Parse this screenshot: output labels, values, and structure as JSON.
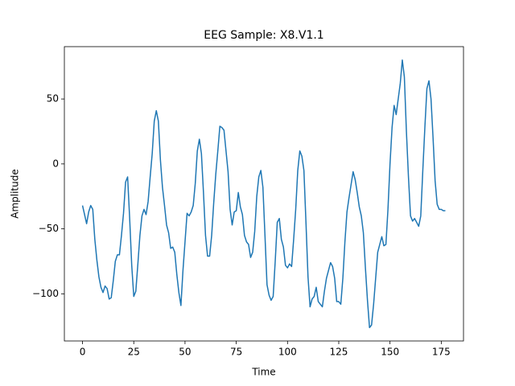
{
  "chart_data": {
    "type": "line",
    "title": "EEG Sample: X8.V1.1",
    "x_label": "Time",
    "y_label": "Amplitude",
    "x": [
      0,
      1,
      2,
      3,
      4,
      5,
      6,
      7,
      8,
      9,
      10,
      11,
      12,
      13,
      14,
      15,
      16,
      17,
      18,
      19,
      20,
      21,
      22,
      23,
      24,
      25,
      26,
      27,
      28,
      29,
      30,
      31,
      32,
      33,
      34,
      35,
      36,
      37,
      38,
      39,
      40,
      41,
      42,
      43,
      44,
      45,
      46,
      47,
      48,
      49,
      50,
      51,
      52,
      53,
      54,
      55,
      56,
      57,
      58,
      59,
      60,
      61,
      62,
      63,
      64,
      65,
      66,
      67,
      68,
      69,
      70,
      71,
      72,
      73,
      74,
      75,
      76,
      77,
      78,
      79,
      80,
      81,
      82,
      83,
      84,
      85,
      86,
      87,
      88,
      89,
      90,
      91,
      92,
      93,
      94,
      95,
      96,
      97,
      98,
      99,
      100,
      101,
      102,
      103,
      104,
      105,
      106,
      107,
      108,
      109,
      110,
      111,
      112,
      113,
      114,
      115,
      116,
      117,
      118,
      119,
      120,
      121,
      122,
      123,
      124,
      125,
      126,
      127,
      128,
      129,
      130,
      131,
      132,
      133,
      134,
      135,
      136,
      137,
      138,
      139,
      140,
      141,
      142,
      143,
      144,
      145,
      146,
      147,
      148,
      149,
      150,
      151,
      152,
      153,
      154,
      155,
      156,
      157,
      158,
      159,
      160,
      161,
      162,
      163,
      164,
      165,
      166,
      167,
      168,
      169,
      170,
      171,
      172,
      173,
      174,
      175,
      176,
      177
    ],
    "series": [
      {
        "name": "X8.V1.1",
        "color": "#1f77b4",
        "values": [
          -32,
          -39,
          -46,
          -37,
          -32,
          -35,
          -58,
          -74,
          -87,
          -95,
          -99,
          -94,
          -96,
          -104,
          -103,
          -90,
          -75,
          -70,
          -70,
          -55,
          -38,
          -14,
          -10,
          -42,
          -78,
          -102,
          -98,
          -77,
          -55,
          -40,
          -35,
          -39,
          -29,
          -10,
          8,
          33,
          41,
          33,
          3,
          -18,
          -32,
          -47,
          -53,
          -65,
          -64,
          -68,
          -85,
          -99,
          -109,
          -82,
          -60,
          -38,
          -40,
          -37,
          -32,
          -15,
          10,
          19,
          8,
          -22,
          -55,
          -71,
          -71,
          -55,
          -30,
          -8,
          10,
          29,
          28,
          26,
          10,
          -6,
          -35,
          -47,
          -37,
          -36,
          -22,
          -33,
          -39,
          -55,
          -60,
          -62,
          -72,
          -68,
          -52,
          -25,
          -10,
          -5,
          -18,
          -55,
          -93,
          -101,
          -105,
          -102,
          -75,
          -45,
          -42,
          -58,
          -64,
          -78,
          -80,
          -77,
          -79,
          -58,
          -35,
          -5,
          10,
          6,
          -5,
          -45,
          -87,
          -110,
          -104,
          -102,
          -95,
          -106,
          -108,
          -110,
          -98,
          -88,
          -82,
          -76,
          -79,
          -88,
          -106,
          -106,
          -108,
          -88,
          -60,
          -37,
          -26,
          -16,
          -6,
          -12,
          -22,
          -33,
          -40,
          -53,
          -80,
          -105,
          -126,
          -124,
          -108,
          -88,
          -68,
          -62,
          -56,
          -63,
          -62,
          -35,
          0,
          28,
          45,
          38,
          50,
          62,
          80,
          67,
          25,
          -10,
          -40,
          -44,
          -42,
          -45,
          -48,
          -40,
          -5,
          28,
          58,
          64,
          50,
          20,
          -13,
          -31,
          -35,
          -35,
          -36,
          -36
        ]
      }
    ],
    "xlim": [
      -8.85,
      185.85
    ],
    "ylim": [
      -136.3,
      90.3
    ],
    "xticks": [
      0,
      25,
      50,
      75,
      100,
      125,
      150,
      175
    ],
    "yticks": [
      {
        "value": -100,
        "label": "−100"
      },
      {
        "value": -50,
        "label": "−50"
      },
      0,
      50
    ]
  }
}
